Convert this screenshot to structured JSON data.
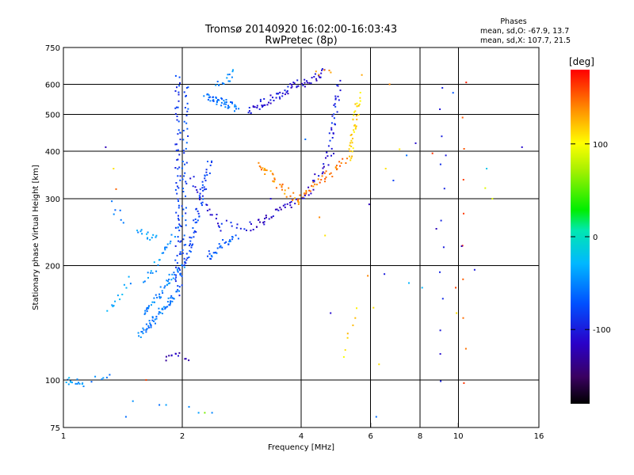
{
  "chart_data": {
    "type": "scatter",
    "title": "Tromsø 20140920 16:02:00-16:03:43",
    "subtitle": "RwPretec (8p)",
    "xlabel": "Frequency [MHz]",
    "ylabel": "Stationary phase Virtual Height [km]",
    "x_scale": "log",
    "y_scale": "log",
    "xlim": [
      1,
      16
    ],
    "ylim": [
      75,
      750
    ],
    "x_ticks": [
      "1",
      "2",
      "4",
      "6",
      "8",
      "10",
      "16"
    ],
    "x_tick_values": [
      1,
      2,
      4,
      6,
      8,
      10,
      16
    ],
    "y_ticks": [
      "750",
      "600",
      "500",
      "400",
      "300",
      "200",
      "100",
      "75"
    ],
    "y_tick_values": [
      750,
      600,
      500,
      400,
      300,
      200,
      100,
      75
    ],
    "grid_x": [
      2,
      4,
      6,
      8,
      10
    ],
    "grid_y": [
      100,
      200,
      300,
      400,
      500,
      600
    ],
    "annotation": {
      "heading": "Phases",
      "line1": "mean, sd,O: -67.9, 13.7",
      "line2": "mean, sd,X: 107.7, 21.5"
    },
    "colorbar": {
      "label": "[deg]",
      "range": [
        -180,
        180
      ],
      "ticks": [
        "100",
        "0",
        "-100"
      ],
      "tick_values": [
        100,
        0,
        -100
      ]
    },
    "traces": [
      {
        "from": [
          1.0,
          100
        ],
        "to": [
          1.12,
          98
        ],
        "phase": -40,
        "n": 18
      },
      {
        "from": [
          1.18,
          101
        ],
        "to": [
          1.32,
          102
        ],
        "phase": -50,
        "n": 6
      },
      {
        "from": [
          1.3,
          150
        ],
        "to": [
          1.48,
          185
        ],
        "phase": -40,
        "n": 12
      },
      {
        "from": [
          1.32,
          290
        ],
        "to": [
          1.42,
          265
        ],
        "phase": -50,
        "n": 6
      },
      {
        "from": [
          1.55,
          250
        ],
        "to": [
          1.72,
          235
        ],
        "phase": -40,
        "n": 14
      },
      {
        "from": [
          1.55,
          130
        ],
        "to": [
          1.95,
          170
        ],
        "phase": -55,
        "n": 60
      },
      {
        "from": [
          1.6,
          150
        ],
        "to": [
          2.0,
          200
        ],
        "phase": -50,
        "n": 45
      },
      {
        "from": [
          1.6,
          180
        ],
        "to": [
          1.95,
          250
        ],
        "phase": -45,
        "n": 25
      },
      {
        "from": [
          1.8,
          115
        ],
        "to": [
          2.05,
          115
        ],
        "phase": -120,
        "n": 12
      },
      {
        "from": [
          1.95,
          170
        ],
        "to": [
          1.95,
          630
        ],
        "phase": -85,
        "n": 70
      },
      {
        "from": [
          2.0,
          180
        ],
        "to": [
          2.05,
          600
        ],
        "phase": -75,
        "n": 55
      },
      {
        "from": [
          2.05,
          200
        ],
        "to": [
          2.35,
          380
        ],
        "phase": -80,
        "n": 60
      },
      {
        "from": [
          2.3,
          210
        ],
        "to": [
          2.75,
          240
        ],
        "phase": -65,
        "n": 30
      },
      {
        "from": [
          2.1,
          340
        ],
        "to": [
          2.5,
          250
        ],
        "phase": -105,
        "n": 20
      },
      {
        "from": [
          2.5,
          257
        ],
        "to": [
          2.95,
          254
        ],
        "phase": -95,
        "n": 10
      },
      {
        "from": [
          2.95,
          252
        ],
        "to": [
          3.9,
          296
        ],
        "phase": -115,
        "n": 35
      },
      {
        "from": [
          2.3,
          560
        ],
        "to": [
          2.75,
          520
        ],
        "phase": -60,
        "n": 45
      },
      {
        "from": [
          2.45,
          600
        ],
        "to": [
          2.7,
          640
        ],
        "phase": -50,
        "n": 15
      },
      {
        "from": [
          2.95,
          510
        ],
        "to": [
          3.8,
          590
        ],
        "phase": -105,
        "n": 45
      },
      {
        "from": [
          3.8,
          590
        ],
        "to": [
          4.6,
          645
        ],
        "phase": -110,
        "n": 30
      },
      {
        "from": [
          4.4,
          640
        ],
        "to": [
          4.75,
          650
        ],
        "phase": 130,
        "n": 5
      },
      {
        "from": [
          3.1,
          370
        ],
        "to": [
          3.9,
          295
        ],
        "phase": 140,
        "n": 35
      },
      {
        "from": [
          3.9,
          295
        ],
        "to": [
          5.2,
          380
        ],
        "phase": 145,
        "n": 40
      },
      {
        "from": [
          4.05,
          300
        ],
        "to": [
          4.8,
          390
        ],
        "phase": -110,
        "n": 22
      },
      {
        "from": [
          4.7,
          400
        ],
        "to": [
          5.0,
          600
        ],
        "phase": -95,
        "n": 30
      },
      {
        "from": [
          5.3,
          380
        ],
        "to": [
          5.6,
          560
        ],
        "phase": 115,
        "n": 40
      },
      {
        "from": [
          5.2,
          115
        ],
        "to": [
          5.45,
          155
        ],
        "phase": 110,
        "n": 7
      },
      {
        "from": [
          9.1,
          100
        ],
        "to": [
          9.1,
          600
        ],
        "phase": -100,
        "n": 12
      },
      {
        "from": [
          10.4,
          100
        ],
        "to": [
          10.4,
          600
        ],
        "phase": 160,
        "n": 10
      }
    ],
    "scatter_points": [
      [
        1.28,
        410,
        -120
      ],
      [
        1.34,
        360,
        110
      ],
      [
        1.36,
        318,
        150
      ],
      [
        1.44,
        80,
        -60
      ],
      [
        1.5,
        88,
        -45
      ],
      [
        1.62,
        100,
        160
      ],
      [
        1.75,
        86,
        -60
      ],
      [
        1.82,
        86,
        -40
      ],
      [
        2.08,
        85,
        -50
      ],
      [
        2.2,
        82,
        -40
      ],
      [
        2.28,
        82,
        60
      ],
      [
        2.38,
        82,
        -50
      ],
      [
        3.35,
        300,
        -110
      ],
      [
        4.1,
        430,
        -60
      ],
      [
        4.45,
        268,
        140
      ],
      [
        4.6,
        240,
        110
      ],
      [
        4.75,
        150,
        -110
      ],
      [
        5.7,
        635,
        130
      ],
      [
        5.95,
        290,
        -120
      ],
      [
        5.9,
        188,
        140
      ],
      [
        6.1,
        155,
        110
      ],
      [
        6.3,
        110,
        110
      ],
      [
        6.5,
        190,
        -100
      ],
      [
        6.55,
        360,
        110
      ],
      [
        6.7,
        600,
        140
      ],
      [
        6.85,
        335,
        -80
      ],
      [
        7.1,
        405,
        110
      ],
      [
        7.4,
        390,
        -60
      ],
      [
        7.5,
        180,
        -30
      ],
      [
        7.8,
        420,
        -110
      ],
      [
        8.1,
        175,
        -30
      ],
      [
        8.6,
        395,
        165
      ],
      [
        8.8,
        250,
        -120
      ],
      [
        9.3,
        390,
        -100
      ],
      [
        9.7,
        570,
        -70
      ],
      [
        9.85,
        175,
        160
      ],
      [
        9.9,
        150,
        110
      ],
      [
        10.2,
        225,
        -120
      ],
      [
        11.0,
        195,
        -100
      ],
      [
        11.7,
        320,
        90
      ],
      [
        12.2,
        300,
        90
      ],
      [
        11.8,
        360,
        -20
      ],
      [
        14.5,
        410,
        -110
      ],
      [
        6.2,
        80,
        -60
      ]
    ]
  }
}
